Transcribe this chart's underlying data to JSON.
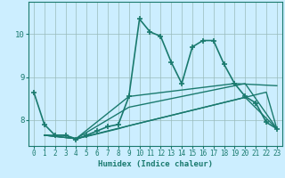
{
  "title": "",
  "xlabel": "Humidex (Indice chaleur)",
  "bg_color": "#cceeff",
  "line_color": "#1a7a6e",
  "grid_color": "#99bbbb",
  "xlim": [
    -0.5,
    23.5
  ],
  "ylim": [
    7.4,
    10.75
  ],
  "xticks": [
    0,
    1,
    2,
    3,
    4,
    5,
    6,
    7,
    8,
    9,
    10,
    11,
    12,
    13,
    14,
    15,
    16,
    17,
    18,
    19,
    20,
    21,
    22,
    23
  ],
  "yticks": [
    8,
    9,
    10
  ],
  "series": [
    {
      "x": [
        0,
        1,
        2,
        3,
        4,
        5,
        6,
        7,
        8,
        9,
        10,
        11,
        12,
        13,
        14,
        15,
        16,
        17,
        18,
        19,
        20,
        21,
        22,
        23
      ],
      "y": [
        8.65,
        7.9,
        7.65,
        7.65,
        7.55,
        7.65,
        7.75,
        7.85,
        7.9,
        8.55,
        10.35,
        10.05,
        9.95,
        9.35,
        8.85,
        9.7,
        9.85,
        9.85,
        9.3,
        8.85,
        8.55,
        8.4,
        7.95,
        7.8
      ],
      "linestyle": "-",
      "marker": "+",
      "linewidth": 1.2
    },
    {
      "x": [
        1,
        2,
        3,
        4,
        5,
        6,
        7,
        8,
        9,
        10,
        11,
        12,
        13,
        14,
        15,
        16,
        17,
        18,
        19,
        20,
        21,
        22,
        23
      ],
      "y": [
        7.65,
        7.65,
        7.65,
        7.57,
        7.62,
        7.68,
        7.74,
        7.8,
        7.87,
        7.93,
        7.99,
        8.05,
        8.11,
        8.17,
        8.23,
        8.29,
        8.35,
        8.41,
        8.47,
        8.53,
        8.59,
        8.65,
        7.8
      ],
      "linestyle": "-",
      "marker": null,
      "linewidth": 1.0
    },
    {
      "x": [
        1,
        4,
        9,
        20,
        23
      ],
      "y": [
        7.65,
        7.57,
        7.87,
        8.53,
        7.8
      ],
      "linestyle": "-",
      "marker": null,
      "linewidth": 1.0
    },
    {
      "x": [
        1,
        4,
        9,
        20,
        23
      ],
      "y": [
        7.65,
        7.57,
        8.3,
        8.85,
        7.8
      ],
      "linestyle": "-",
      "marker": null,
      "linewidth": 1.0
    },
    {
      "x": [
        1,
        4,
        9,
        19,
        23
      ],
      "y": [
        7.65,
        7.57,
        8.55,
        8.85,
        8.8
      ],
      "linestyle": "-",
      "marker": null,
      "linewidth": 1.0
    }
  ]
}
